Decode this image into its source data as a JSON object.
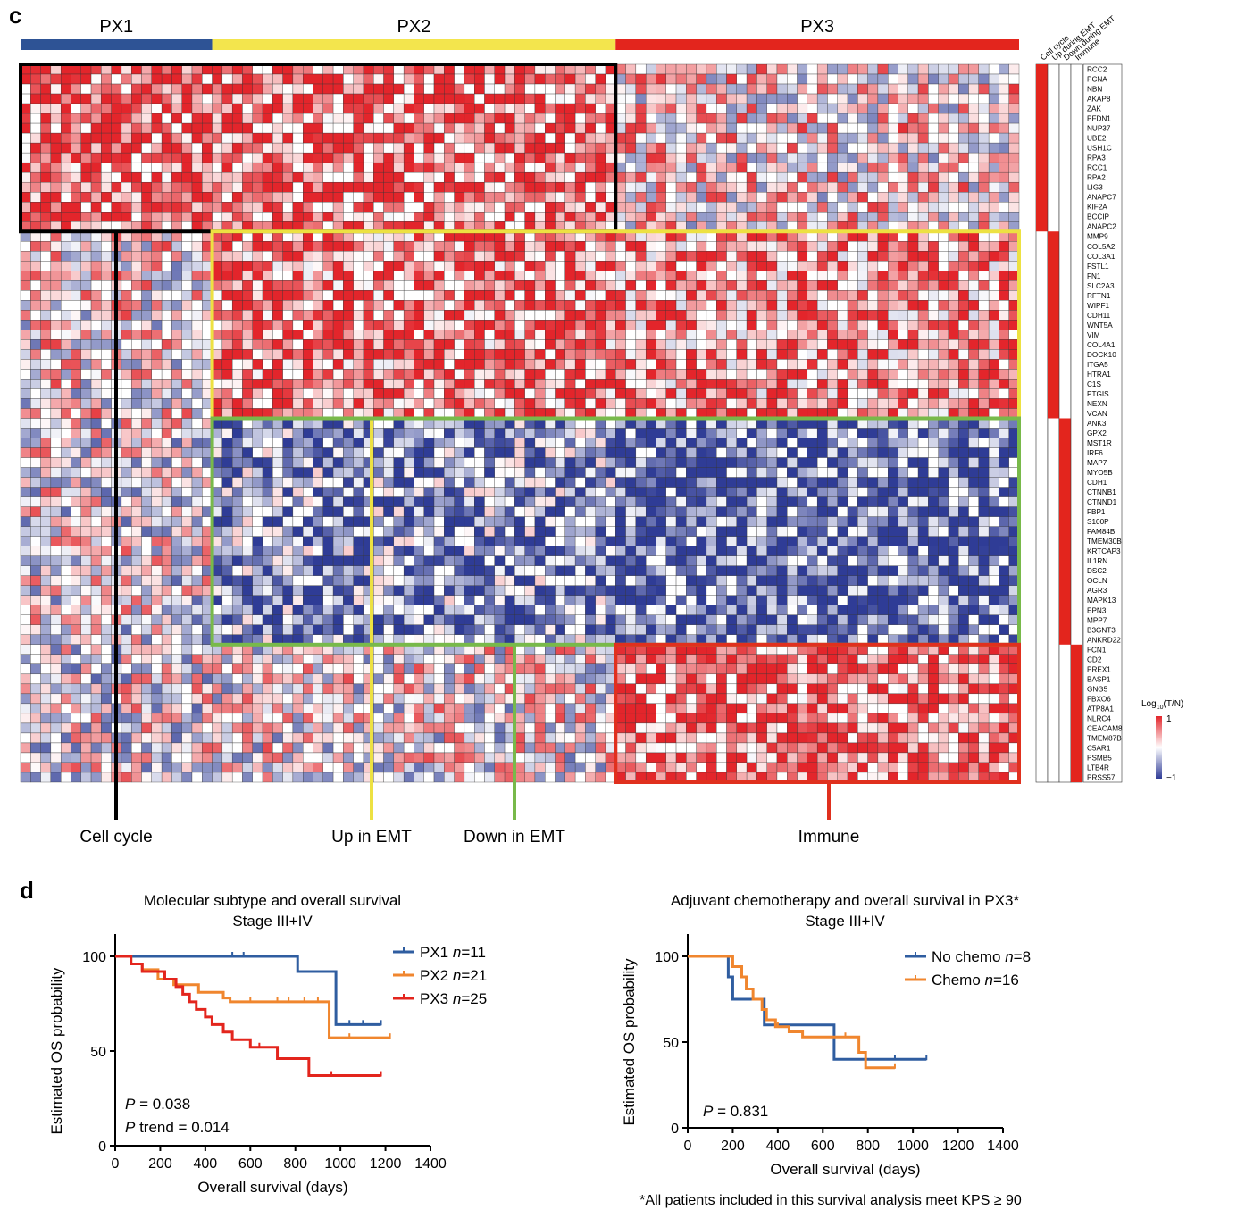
{
  "panel_c": {
    "label": "c",
    "subtypes": [
      {
        "name": "PX1",
        "color": "#2e5395"
      },
      {
        "name": "PX2",
        "color": "#f3e54d"
      },
      {
        "name": "PX3",
        "color": "#e3251d"
      }
    ],
    "module_headers": [
      "Cell cycle",
      "Up during EMT",
      "Down during EMT",
      "Immune"
    ],
    "modules": [
      {
        "name": "Cell cycle",
        "color": "#000000"
      },
      {
        "name": "Up in EMT",
        "color": "#ede142"
      },
      {
        "name": "Down in EMT",
        "color": "#78b94a"
      },
      {
        "name": "Immune",
        "color": "#e0301e"
      }
    ],
    "legend": {
      "title": "Log10(T/N)",
      "title_main": "Log",
      "title_sub": "10",
      "title_tail": "(T/N)",
      "max": "1",
      "min": "−1"
    },
    "genes": [
      "RCC2",
      "PCNA",
      "NBN",
      "AKAP8",
      "ZAK",
      "PFDN1",
      "NUP37",
      "UBE2I",
      "USH1C",
      "RPA3",
      "RCC1",
      "RPA2",
      "LIG3",
      "ANAPC7",
      "KIF2A",
      "BCCIP",
      "ANAPC2",
      "MMP9",
      "COL5A2",
      "COL3A1",
      "FSTL1",
      "FN1",
      "SLC2A3",
      "RFTN1",
      "WIPF1",
      "CDH11",
      "WNT5A",
      "VIM",
      "COL4A1",
      "DOCK10",
      "ITGA5",
      "HTRA1",
      "C1S",
      "PTGIS",
      "NEXN",
      "VCAN",
      "ANK3",
      "GPX2",
      "MST1R",
      "IRF6",
      "MAP7",
      "MYO5B",
      "CDH1",
      "CTNNB1",
      "CTNND1",
      "FBP1",
      "S100P",
      "FAM84B",
      "TMEM30B",
      "KRTCAP3",
      "IL1RN",
      "DSC2",
      "OCLN",
      "AGR3",
      "MAPK13",
      "EPN3",
      "MPP7",
      "B3GNT3",
      "ANKRD22",
      "FCN1",
      "CD2",
      "PREX1",
      "BASP1",
      "GNG5",
      "FBXO6",
      "ATP8A1",
      "NLRC4",
      "CEACAM8",
      "TMEM87B",
      "C5AR1",
      "PSMB5",
      "LTB4R",
      "PRSS57"
    ]
  },
  "panel_d": {
    "label": "d",
    "footnote": "*All patients included in this survival analysis meet KPS ≥ 90"
  },
  "chart_data": [
    {
      "type": "heatmap",
      "title": "",
      "value_label": "Log10(T/N)",
      "value_range": [
        -1,
        1
      ],
      "column_groups": [
        {
          "name": "PX1",
          "columns": 19
        },
        {
          "name": "PX2",
          "columns": 40
        },
        {
          "name": "PX3",
          "columns": 40
        }
      ],
      "row_modules": [
        {
          "name": "Cell cycle",
          "rows": 17
        },
        {
          "name": "Up in EMT",
          "rows": 19
        },
        {
          "name": "Down in EMT",
          "rows": 23
        },
        {
          "name": "Immune",
          "rows": 14
        }
      ]
    },
    {
      "type": "line",
      "title": "Molecular subtype and overall survival",
      "subtitle": "Stage III+IV",
      "xlabel": "Overall survival (days)",
      "ylabel": "Estimated OS probability",
      "xlim": [
        0,
        1400
      ],
      "ylim": [
        0,
        100
      ],
      "xticks": [
        0,
        200,
        400,
        600,
        800,
        1000,
        1200,
        1400
      ],
      "yticks": [
        0,
        50,
        100
      ],
      "annotations": [
        {
          "p": "P",
          "rest": " = 0.038"
        },
        {
          "p": "P",
          "rest": " trend = 0.014"
        }
      ],
      "legend_position": "top-right",
      "series": [
        {
          "name": "PX1",
          "n_label": "n",
          "n": "=11",
          "color": "#2f5da0",
          "x": [
            0,
            810,
            810,
            980,
            980,
            1180
          ],
          "y": [
            100,
            100,
            92,
            92,
            64,
            64
          ],
          "censors": [
            [
              520,
              100
            ],
            [
              570,
              100
            ],
            [
              1040,
              64
            ],
            [
              1100,
              64
            ],
            [
              1180,
              64
            ]
          ]
        },
        {
          "name": "PX2",
          "n_label": "n",
          "n": "=21",
          "color": "#f0862e",
          "x": [
            0,
            70,
            70,
            120,
            120,
            190,
            190,
            260,
            260,
            370,
            370,
            480,
            480,
            510,
            510,
            950,
            950,
            1220
          ],
          "y": [
            100,
            100,
            96,
            96,
            93,
            93,
            88,
            88,
            85,
            85,
            81,
            81,
            78,
            78,
            76,
            76,
            57,
            57
          ],
          "censors": [
            [
              600,
              76
            ],
            [
              720,
              76
            ],
            [
              770,
              76
            ],
            [
              840,
              76
            ],
            [
              900,
              76
            ],
            [
              1040,
              57
            ],
            [
              1220,
              57
            ]
          ]
        },
        {
          "name": "PX3",
          "n_label": "n",
          "n": "=25",
          "color": "#e3251d",
          "x": [
            0,
            70,
            70,
            120,
            120,
            220,
            220,
            270,
            270,
            300,
            300,
            330,
            330,
            360,
            360,
            400,
            400,
            430,
            430,
            480,
            480,
            520,
            520,
            600,
            600,
            720,
            720,
            860,
            860,
            1180
          ],
          "y": [
            100,
            100,
            96,
            96,
            92,
            92,
            88,
            88,
            84,
            84,
            80,
            80,
            76,
            76,
            72,
            72,
            68,
            68,
            64,
            64,
            60,
            60,
            56,
            56,
            52,
            52,
            46,
            46,
            37,
            37
          ],
          "censors": [
            [
              640,
              52
            ],
            [
              960,
              37
            ],
            [
              1180,
              37
            ]
          ]
        }
      ]
    },
    {
      "type": "line",
      "title": "Adjuvant chemotherapy and overall survival in PX3*",
      "subtitle": "Stage III+IV",
      "xlabel": "Overall survival (days)",
      "ylabel": "Estimated OS probability",
      "xlim": [
        0,
        1400
      ],
      "ylim": [
        0,
        100
      ],
      "xticks": [
        0,
        200,
        400,
        600,
        800,
        1000,
        1200,
        1400
      ],
      "yticks": [
        0,
        50,
        100
      ],
      "annotations": [
        {
          "p": "P",
          "rest": " = 0.831"
        }
      ],
      "legend_position": "top-right",
      "series": [
        {
          "name": "No chemo",
          "n_label": "n",
          "n": "=8",
          "color": "#2f5da0",
          "x": [
            0,
            180,
            180,
            200,
            200,
            340,
            340,
            650,
            650,
            1060
          ],
          "y": [
            100,
            100,
            88,
            88,
            75,
            75,
            60,
            60,
            40,
            40
          ],
          "censors": [
            [
              920,
              40
            ],
            [
              1060,
              40
            ]
          ]
        },
        {
          "name": "Chemo",
          "n_label": "n",
          "n": "=16",
          "color": "#f0862e",
          "x": [
            0,
            200,
            200,
            240,
            240,
            260,
            260,
            290,
            290,
            330,
            330,
            350,
            350,
            390,
            390,
            450,
            450,
            510,
            510,
            760,
            760,
            790,
            790,
            920
          ],
          "y": [
            100,
            100,
            94,
            94,
            88,
            88,
            81,
            81,
            75,
            75,
            69,
            69,
            63,
            63,
            59,
            59,
            56,
            56,
            53,
            53,
            44,
            44,
            35,
            35
          ],
          "censors": [
            [
              400,
              59
            ],
            [
              700,
              53
            ],
            [
              920,
              35
            ]
          ]
        }
      ]
    }
  ]
}
